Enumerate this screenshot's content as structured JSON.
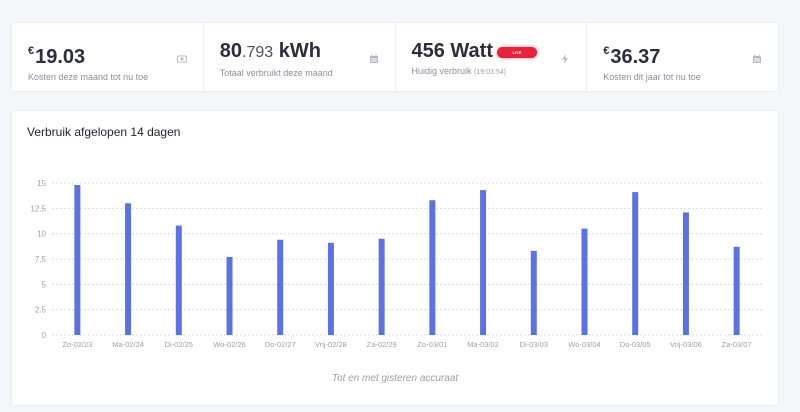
{
  "stats": [
    {
      "currency": "€",
      "value_main": "19.03",
      "value_frac": "",
      "unit": "",
      "label": "Kosten deze maand tot nu toe",
      "time": "",
      "icon": "money-icon"
    },
    {
      "currency": "",
      "value_main": "80",
      "value_frac": ".793",
      "unit": " kWh",
      "label": "Totaal verbruikt deze maand",
      "time": "",
      "icon": "calendar-icon"
    },
    {
      "currency": "",
      "value_main": "456 Watt",
      "value_frac": "",
      "unit": "",
      "label": "Huidig verbruik",
      "time": "(19:03:54)",
      "icon": "bolt-icon",
      "badge": "LIVE"
    },
    {
      "currency": "€",
      "value_main": "36.37",
      "value_frac": "",
      "unit": "",
      "label": "Kosten dit jaar tot nu toe",
      "time": "",
      "icon": "calendar-icon"
    }
  ],
  "colors": {
    "bar": "#5d72e2",
    "badge": "#e5233d",
    "grid": "#d9dce3",
    "tick": "#9aa0ac"
  },
  "chart": {
    "title": "Verbruik afgelopen 14 dagen",
    "footnote": "Tot en met gisteren accuraat"
  },
  "chart_data": {
    "type": "bar",
    "categories": [
      "Zo-02/23",
      "Ma-02/24",
      "Di-02/25",
      "Wo-02/26",
      "Do-02/27",
      "Vrij-02/28",
      "Za-02/29",
      "Zo-03/01",
      "Ma-03/02",
      "Di-03/03",
      "Wo-03/04",
      "Do-03/05",
      "Vrij-03/06",
      "Za-03/07"
    ],
    "values": [
      14.8,
      13.0,
      10.8,
      7.7,
      9.4,
      9.1,
      9.5,
      13.3,
      14.3,
      8.3,
      10.5,
      14.1,
      12.1,
      8.7
    ],
    "ylim": [
      0,
      15
    ],
    "yticks": [
      "0",
      "2.5",
      "5",
      "7.5",
      "10",
      "12.5",
      "15"
    ],
    "grid": true,
    "title": "Verbruik afgelopen 14 dagen",
    "xlabel": "",
    "ylabel": ""
  }
}
